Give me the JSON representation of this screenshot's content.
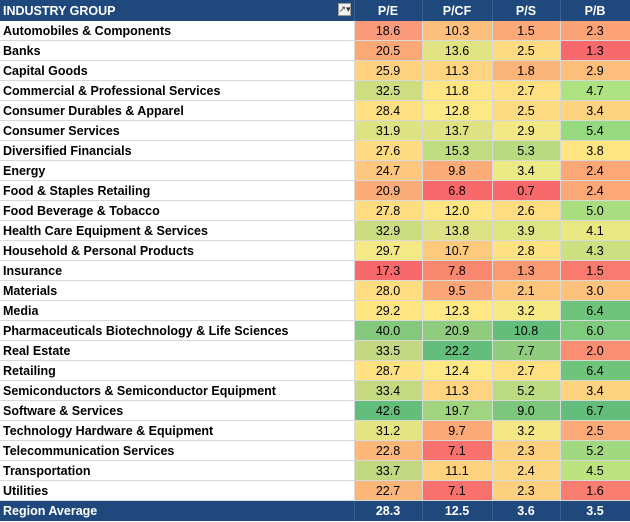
{
  "header": {
    "industry_label": "INDUSTRY GROUP",
    "filter_icon": "filter-dropdown-icon",
    "columns": [
      "P/E",
      "P/CF",
      "P/S",
      "P/B"
    ]
  },
  "rows": [
    {
      "name": "Automobiles & Components",
      "pe": "18.6",
      "pcf": "10.3",
      "ps": "1.5",
      "pb": "2.3",
      "colors": [
        "#f99b7a",
        "#fcc07c",
        "#fbaa77",
        "#fba376"
      ]
    },
    {
      "name": "Banks",
      "pe": "20.5",
      "pcf": "13.6",
      "ps": "2.5",
      "pb": "1.3",
      "colors": [
        "#fba877",
        "#e1e383",
        "#feda80",
        "#f8696b"
      ]
    },
    {
      "name": "Capital Goods",
      "pe": "25.9",
      "pcf": "11.3",
      "ps": "1.8",
      "pb": "2.9",
      "colors": [
        "#fed17f",
        "#fed480",
        "#fbb478",
        "#fdbe7b"
      ]
    },
    {
      "name": "Commercial & Professional Services",
      "pe": "32.5",
      "pcf": "11.8",
      "ps": "2.7",
      "pb": "4.7",
      "colors": [
        "#cfdd81",
        "#fee482",
        "#fee081",
        "#ace27f"
      ]
    },
    {
      "name": "Consumer Durables & Apparel",
      "pe": "28.4",
      "pcf": "12.8",
      "ps": "2.5",
      "pb": "3.4",
      "colors": [
        "#fee081",
        "#fde983",
        "#feda80",
        "#fed37f"
      ]
    },
    {
      "name": "Consumer Services",
      "pe": "31.9",
      "pcf": "13.7",
      "ps": "2.9",
      "pb": "5.4",
      "colors": [
        "#dde282",
        "#dfe283",
        "#f3e884",
        "#96d97e"
      ]
    },
    {
      "name": "Diversified Financials",
      "pe": "27.6",
      "pcf": "15.3",
      "ps": "5.3",
      "pb": "3.8",
      "colors": [
        "#feda80",
        "#c0dc81",
        "#b9db80",
        "#fee582"
      ]
    },
    {
      "name": "Energy",
      "pe": "24.7",
      "pcf": "9.8",
      "ps": "3.4",
      "pb": "2.4",
      "colors": [
        "#fdc77d",
        "#fbac77",
        "#ecea84",
        "#fca776"
      ]
    },
    {
      "name": "Food & Staples Retailing",
      "pe": "20.9",
      "pcf": "6.8",
      "ps": "0.7",
      "pb": "2.4",
      "colors": [
        "#fbac77",
        "#f8696b",
        "#f8696b",
        "#fca776"
      ]
    },
    {
      "name": "Food Beverage & Tobacco",
      "pe": "27.8",
      "pcf": "12.0",
      "ps": "2.6",
      "pb": "5.0",
      "colors": [
        "#fedc80",
        "#fee582",
        "#fedd81",
        "#a8dd80"
      ]
    },
    {
      "name": "Health Care Equipment & Services",
      "pe": "32.9",
      "pcf": "13.8",
      "ps": "3.9",
      "pb": "4.1",
      "colors": [
        "#cbdc81",
        "#dce283",
        "#dde482",
        "#eae883"
      ]
    },
    {
      "name": "Household & Personal Products",
      "pe": "29.7",
      "pcf": "10.7",
      "ps": "2.8",
      "pb": "4.3",
      "colors": [
        "#f4e984",
        "#fdc97d",
        "#fee282",
        "#cce082"
      ]
    },
    {
      "name": "Insurance",
      "pe": "17.3",
      "pcf": "7.8",
      "ps": "1.3",
      "pb": "1.5",
      "colors": [
        "#f8696b",
        "#f98770",
        "#fa9a73",
        "#f97a6e"
      ]
    },
    {
      "name": "Materials",
      "pe": "28.0",
      "pcf": "9.5",
      "ps": "2.1",
      "pb": "3.0",
      "colors": [
        "#fedd81",
        "#fba676",
        "#fdc57c",
        "#fdc27c"
      ]
    },
    {
      "name": "Media",
      "pe": "29.2",
      "pcf": "12.3",
      "ps": "3.2",
      "pb": "6.4",
      "colors": [
        "#fee582",
        "#fee883",
        "#f7e984",
        "#6fc47c"
      ]
    },
    {
      "name": "Pharmaceuticals Biotechnology & Life Sciences",
      "pe": "40.0",
      "pcf": "20.9",
      "ps": "10.8",
      "pb": "6.0",
      "colors": [
        "#84c87d",
        "#8fcc7e",
        "#63be7b",
        "#7fcb7d"
      ]
    },
    {
      "name": "Real Estate",
      "pe": "33.5",
      "pcf": "22.2",
      "ps": "7.7",
      "pb": "2.0",
      "colors": [
        "#c3d880",
        "#63be7b",
        "#8fcc7e",
        "#f98e72"
      ]
    },
    {
      "name": "Retailing",
      "pe": "28.7",
      "pcf": "12.4",
      "ps": "2.7",
      "pb": "6.4",
      "colors": [
        "#fee282",
        "#fee883",
        "#fee081",
        "#6fc47c"
      ]
    },
    {
      "name": "Semiconductors & Semiconductor Equipment",
      "pe": "33.4",
      "pcf": "11.3",
      "ps": "5.2",
      "pb": "3.4",
      "colors": [
        "#c5d980",
        "#fed480",
        "#bbdb80",
        "#fed37f"
      ]
    },
    {
      "name": "Software & Services",
      "pe": "42.6",
      "pcf": "19.7",
      "ps": "9.0",
      "pb": "6.7",
      "colors": [
        "#63be7b",
        "#a0d47f",
        "#7cc67d",
        "#63be7b"
      ]
    },
    {
      "name": "Technology Hardware & Equipment",
      "pe": "31.2",
      "pcf": "9.7",
      "ps": "3.2",
      "pb": "2.5",
      "colors": [
        "#e5e483",
        "#fba877",
        "#f5e884",
        "#fcaa77"
      ]
    },
    {
      "name": "Telecommunication Services",
      "pe": "22.8",
      "pcf": "7.1",
      "ps": "2.3",
      "pb": "5.2",
      "colors": [
        "#fbb879",
        "#f8716d",
        "#fdd07f",
        "#a0d97f"
      ]
    },
    {
      "name": "Transportation",
      "pe": "33.7",
      "pcf": "11.1",
      "ps": "2.4",
      "pb": "4.5",
      "colors": [
        "#c1d880",
        "#fed17f",
        "#fed580",
        "#bde380"
      ]
    },
    {
      "name": "Utilities",
      "pe": "22.7",
      "pcf": "7.1",
      "ps": "2.3",
      "pb": "1.6",
      "colors": [
        "#fbb779",
        "#f8716d",
        "#fdd07f",
        "#f97e6f"
      ]
    }
  ],
  "footer": {
    "label": "Region Average",
    "pe": "28.3",
    "pcf": "12.5",
    "ps": "3.6",
    "pb": "3.5"
  }
}
